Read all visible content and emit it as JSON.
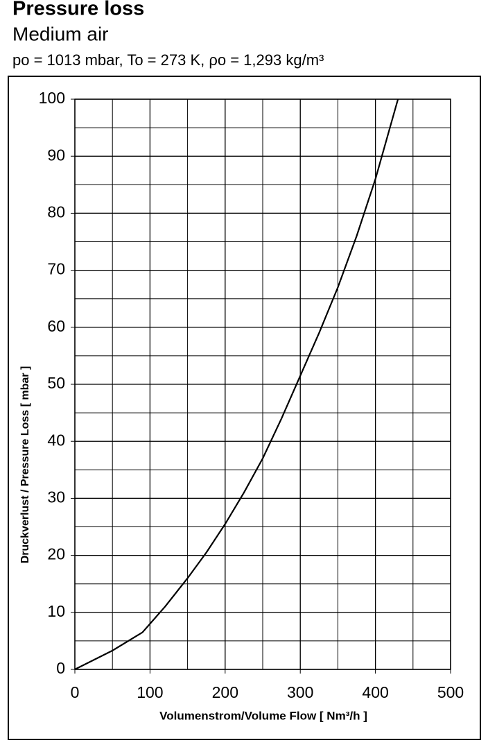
{
  "chart_data": {
    "type": "line",
    "title": "Pressure loss",
    "subtitle": "Medium air",
    "conditions": "po = 1013 mbar, To = 273 K, ρo = 1,293 kg/m³",
    "x_label": "Volumenstrom/Volume Flow [ Nm³/h ]",
    "y_label": "Druckverlust / Pressure Loss [ mbar ]",
    "x": [
      0,
      50,
      90,
      100,
      120,
      150,
      175,
      200,
      225,
      250,
      275,
      300,
      325,
      350,
      375,
      400,
      430
    ],
    "values": [
      0,
      3.3,
      6.5,
      8,
      11,
      16,
      20.5,
      25.5,
      31,
      37,
      44,
      51.5,
      59,
      67,
      76,
      86,
      100
    ],
    "color": "#000000",
    "xlim": [
      0,
      500
    ],
    "xticks": [
      0,
      100,
      200,
      300,
      400,
      500
    ],
    "ylim": [
      0,
      100
    ],
    "yticks": [
      0,
      10,
      20,
      30,
      40,
      50,
      60,
      70,
      80,
      90,
      100
    ],
    "grid": true,
    "minor_grid": {
      "x": 50,
      "y": 5
    }
  }
}
